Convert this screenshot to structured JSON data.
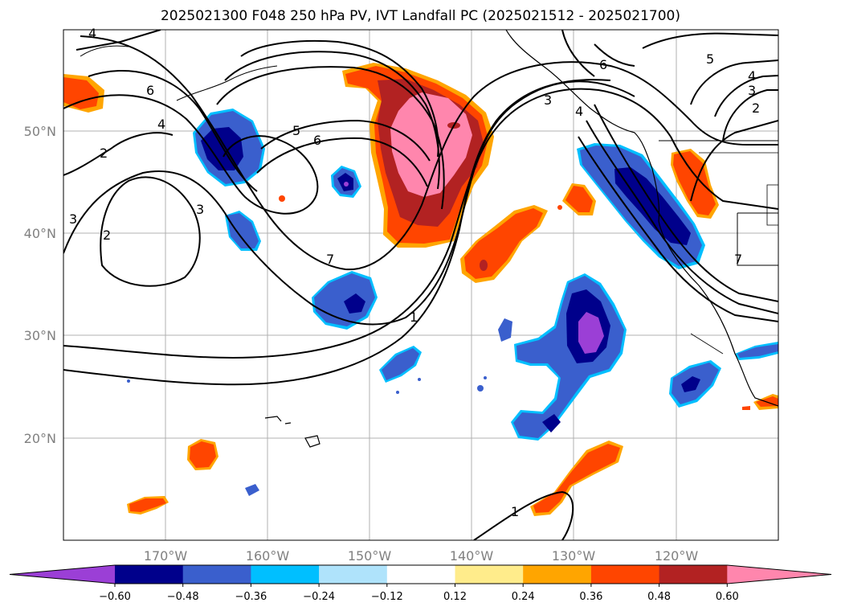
{
  "title": "2025021300 F048 250 hPa PV, IVT Landfall PC (2025021512 - 2025021700)",
  "map": {
    "lat_ticks": [
      "50°N",
      "40°N",
      "30°N",
      "20°N"
    ],
    "lon_ticks": [
      "170°W",
      "160°W",
      "150°W",
      "140°W",
      "130°W",
      "120°W"
    ],
    "contour_labels": [
      "4",
      "6",
      "4",
      "2",
      "3",
      "2",
      "3",
      "5",
      "6",
      "7",
      "1",
      "5",
      "4",
      "3",
      "2",
      "6",
      "3",
      "4",
      "7",
      "1"
    ]
  },
  "colorbar": {
    "ticks": [
      "−0.60",
      "−0.48",
      "−0.36",
      "−0.24",
      "−0.12",
      "0.12",
      "0.24",
      "0.36",
      "0.48",
      "0.60"
    ],
    "colors": [
      "#9b3fd6",
      "#00008b",
      "#3a5fcd",
      "#00bfff",
      "#afe3fb",
      "#ffffff",
      "#ffec8b",
      "#ffa500",
      "#ff4500",
      "#b22222",
      "#ff86ad"
    ]
  }
}
